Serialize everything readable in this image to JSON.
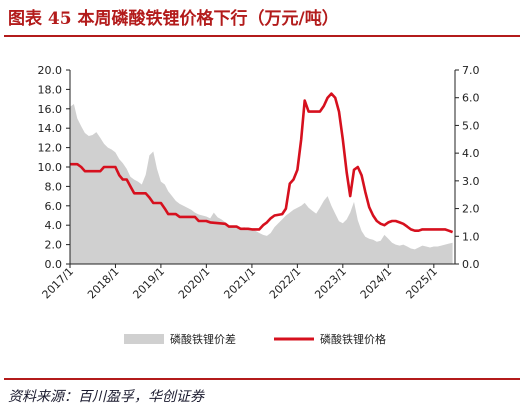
{
  "title": "图表 45    本周磷酸铁锂价格下行（万元/吨）",
  "source": "资料来源：百川盈孚，华创证券",
  "chart_data": {
    "type": "line+area",
    "x_tick_labels": [
      "2017/1",
      "2018/1",
      "2019/1",
      "2020/1",
      "2021/1",
      "2022/1",
      "2023/1",
      "2024/1",
      "2025/1"
    ],
    "y_left": {
      "min": 0,
      "max": 20,
      "ticks": [
        "0.0",
        "2.0",
        "4.0",
        "6.0",
        "8.0",
        "10.0",
        "12.0",
        "14.0",
        "16.0",
        "18.0",
        "20.0"
      ]
    },
    "y_right": {
      "min": 0,
      "max": 7,
      "ticks": [
        "0.0",
        "1.0",
        "2.0",
        "3.0",
        "4.0",
        "5.0",
        "6.0",
        "7.0"
      ]
    },
    "series": [
      {
        "name": "磷酸铁锂价差",
        "axis": "left",
        "color": "#d0d0d0",
        "points": [
          [
            "2017-01-01",
            16.2
          ],
          [
            "2017-02-01",
            16.5
          ],
          [
            "2017-03-01",
            15.0
          ],
          [
            "2017-04-01",
            14.2
          ],
          [
            "2017-05-01",
            13.5
          ],
          [
            "2017-06-01",
            13.2
          ],
          [
            "2017-07-01",
            13.3
          ],
          [
            "2017-08-01",
            13.6
          ],
          [
            "2017-09-01",
            13.0
          ],
          [
            "2017-10-01",
            12.4
          ],
          [
            "2017-11-01",
            12.0
          ],
          [
            "2017-12-01",
            11.8
          ],
          [
            "2018-01-01",
            11.5
          ],
          [
            "2018-02-01",
            10.8
          ],
          [
            "2018-03-01",
            10.4
          ],
          [
            "2018-04-01",
            9.8
          ],
          [
            "2018-05-01",
            9.0
          ],
          [
            "2018-06-01",
            8.7
          ],
          [
            "2018-07-01",
            8.5
          ],
          [
            "2018-08-01",
            8.2
          ],
          [
            "2018-09-01",
            9.2
          ],
          [
            "2018-10-01",
            11.2
          ],
          [
            "2018-11-01",
            11.6
          ],
          [
            "2018-12-01",
            9.8
          ],
          [
            "2019-01-01",
            8.5
          ],
          [
            "2019-02-01",
            8.2
          ],
          [
            "2019-03-01",
            7.5
          ],
          [
            "2019-04-01",
            7.0
          ],
          [
            "2019-05-01",
            6.5
          ],
          [
            "2019-06-01",
            6.2
          ],
          [
            "2019-07-01",
            6.0
          ],
          [
            "2019-08-01",
            5.8
          ],
          [
            "2019-09-01",
            5.6
          ],
          [
            "2019-10-01",
            5.3
          ],
          [
            "2019-11-01",
            5.1
          ],
          [
            "2019-12-01",
            5.0
          ],
          [
            "2020-01-01",
            4.9
          ],
          [
            "2020-02-01",
            4.7
          ],
          [
            "2020-03-01",
            5.3
          ],
          [
            "2020-04-01",
            4.8
          ],
          [
            "2020-05-01",
            4.6
          ],
          [
            "2020-06-01",
            4.3
          ],
          [
            "2020-07-01",
            4.0
          ],
          [
            "2020-08-01",
            3.9
          ],
          [
            "2020-09-01",
            3.9
          ],
          [
            "2020-10-01",
            3.7
          ],
          [
            "2020-11-01",
            3.8
          ],
          [
            "2020-12-01",
            3.6
          ],
          [
            "2021-01-01",
            3.6
          ],
          [
            "2021-02-01",
            3.4
          ],
          [
            "2021-03-01",
            3.2
          ],
          [
            "2021-04-01",
            3.0
          ],
          [
            "2021-05-01",
            2.9
          ],
          [
            "2021-06-01",
            3.2
          ],
          [
            "2021-07-01",
            3.8
          ],
          [
            "2021-08-01",
            4.2
          ],
          [
            "2021-09-01",
            4.6
          ],
          [
            "2021-10-01",
            5.0
          ],
          [
            "2021-11-01",
            5.3
          ],
          [
            "2021-12-01",
            5.6
          ],
          [
            "2022-01-01",
            5.8
          ],
          [
            "2022-02-01",
            6.0
          ],
          [
            "2022-03-01",
            6.3
          ],
          [
            "2022-04-01",
            5.8
          ],
          [
            "2022-05-01",
            5.5
          ],
          [
            "2022-06-01",
            5.2
          ],
          [
            "2022-07-01",
            5.8
          ],
          [
            "2022-08-01",
            6.5
          ],
          [
            "2022-09-01",
            7.0
          ],
          [
            "2022-10-01",
            6.0
          ],
          [
            "2022-11-01",
            5.2
          ],
          [
            "2022-12-01",
            4.4
          ],
          [
            "2023-01-01",
            4.2
          ],
          [
            "2023-02-01",
            4.6
          ],
          [
            "2023-03-01",
            5.3
          ],
          [
            "2023-04-01",
            6.4
          ],
          [
            "2023-05-01",
            4.5
          ],
          [
            "2023-06-01",
            3.4
          ],
          [
            "2023-07-01",
            2.8
          ],
          [
            "2023-08-01",
            2.6
          ],
          [
            "2023-09-01",
            2.5
          ],
          [
            "2023-10-01",
            2.3
          ],
          [
            "2023-11-01",
            2.4
          ],
          [
            "2023-12-01",
            3.0
          ],
          [
            "2024-01-01",
            2.6
          ],
          [
            "2024-02-01",
            2.2
          ],
          [
            "2024-03-01",
            2.0
          ],
          [
            "2024-04-01",
            1.9
          ],
          [
            "2024-05-01",
            2.0
          ],
          [
            "2024-06-01",
            1.8
          ],
          [
            "2024-07-01",
            1.6
          ],
          [
            "2024-08-01",
            1.5
          ],
          [
            "2024-09-01",
            1.7
          ],
          [
            "2024-10-01",
            1.9
          ],
          [
            "2024-11-01",
            1.8
          ],
          [
            "2024-12-01",
            1.7
          ],
          [
            "2025-01-01",
            1.8
          ],
          [
            "2025-02-01",
            1.8
          ],
          [
            "2025-03-01",
            1.9
          ],
          [
            "2025-04-01",
            2.0
          ],
          [
            "2025-05-01",
            2.1
          ],
          [
            "2025-06-01",
            2.2
          ]
        ]
      },
      {
        "name": "磷酸铁锂价格",
        "axis": "right",
        "color": "#d6101e",
        "points": [
          [
            "2017-01-01",
            3.6
          ],
          [
            "2017-03-01",
            3.6
          ],
          [
            "2017-04-01",
            3.5
          ],
          [
            "2017-05-01",
            3.35
          ],
          [
            "2017-09-01",
            3.35
          ],
          [
            "2017-10-01",
            3.5
          ],
          [
            "2017-12-01",
            3.5
          ],
          [
            "2018-01-01",
            3.5
          ],
          [
            "2018-02-01",
            3.2
          ],
          [
            "2018-03-01",
            3.05
          ],
          [
            "2018-04-01",
            3.05
          ],
          [
            "2018-05-01",
            2.8
          ],
          [
            "2018-06-01",
            2.55
          ],
          [
            "2018-09-01",
            2.55
          ],
          [
            "2018-10-01",
            2.4
          ],
          [
            "2018-11-01",
            2.2
          ],
          [
            "2018-12-01",
            2.2
          ],
          [
            "2019-01-01",
            2.2
          ],
          [
            "2019-02-01",
            2.0
          ],
          [
            "2019-03-01",
            1.8
          ],
          [
            "2019-05-01",
            1.8
          ],
          [
            "2019-06-01",
            1.7
          ],
          [
            "2019-10-01",
            1.7
          ],
          [
            "2019-11-01",
            1.55
          ],
          [
            "2019-12-01",
            1.55
          ],
          [
            "2020-01-01",
            1.55
          ],
          [
            "2020-02-01",
            1.5
          ],
          [
            "2020-06-01",
            1.45
          ],
          [
            "2020-07-01",
            1.35
          ],
          [
            "2020-09-01",
            1.35
          ],
          [
            "2020-10-01",
            1.27
          ],
          [
            "2020-12-01",
            1.27
          ],
          [
            "2021-01-01",
            1.25
          ],
          [
            "2021-03-01",
            1.25
          ],
          [
            "2021-04-01",
            1.4
          ],
          [
            "2021-05-01",
            1.5
          ],
          [
            "2021-06-01",
            1.65
          ],
          [
            "2021-07-01",
            1.75
          ],
          [
            "2021-09-01",
            1.8
          ],
          [
            "2021-10-01",
            2.0
          ],
          [
            "2021-11-01",
            2.9
          ],
          [
            "2021-12-01",
            3.05
          ],
          [
            "2022-01-01",
            3.4
          ],
          [
            "2022-02-01",
            4.5
          ],
          [
            "2022-03-01",
            5.9
          ],
          [
            "2022-04-01",
            5.5
          ],
          [
            "2022-05-01",
            5.5
          ],
          [
            "2022-06-01",
            5.5
          ],
          [
            "2022-07-01",
            5.5
          ],
          [
            "2022-08-01",
            5.7
          ],
          [
            "2022-09-01",
            6.0
          ],
          [
            "2022-10-01",
            6.15
          ],
          [
            "2022-11-01",
            6.0
          ],
          [
            "2022-12-01",
            5.5
          ],
          [
            "2023-01-01",
            4.5
          ],
          [
            "2023-02-01",
            3.3
          ],
          [
            "2023-03-01",
            2.45
          ],
          [
            "2023-04-01",
            3.4
          ],
          [
            "2023-05-01",
            3.5
          ],
          [
            "2023-06-01",
            3.2
          ],
          [
            "2023-07-01",
            2.6
          ],
          [
            "2023-08-01",
            2.05
          ],
          [
            "2023-09-01",
            1.75
          ],
          [
            "2023-10-01",
            1.55
          ],
          [
            "2023-11-01",
            1.45
          ],
          [
            "2023-12-01",
            1.4
          ],
          [
            "2024-01-01",
            1.5
          ],
          [
            "2024-02-01",
            1.55
          ],
          [
            "2024-03-01",
            1.55
          ],
          [
            "2024-04-01",
            1.5
          ],
          [
            "2024-05-01",
            1.45
          ],
          [
            "2024-06-01",
            1.35
          ],
          [
            "2024-07-01",
            1.25
          ],
          [
            "2024-08-01",
            1.2
          ],
          [
            "2024-09-01",
            1.2
          ],
          [
            "2024-10-01",
            1.25
          ],
          [
            "2024-11-01",
            1.25
          ],
          [
            "2024-12-01",
            1.25
          ],
          [
            "2025-01-01",
            1.25
          ],
          [
            "2025-02-01",
            1.25
          ],
          [
            "2025-03-01",
            1.25
          ],
          [
            "2025-04-01",
            1.25
          ],
          [
            "2025-05-01",
            1.2
          ],
          [
            "2025-06-01",
            1.15
          ]
        ]
      }
    ],
    "legend": {
      "position": "bottom-center",
      "items": [
        "磷酸铁锂价差",
        "磷酸铁锂价格"
      ]
    },
    "grid": false
  }
}
